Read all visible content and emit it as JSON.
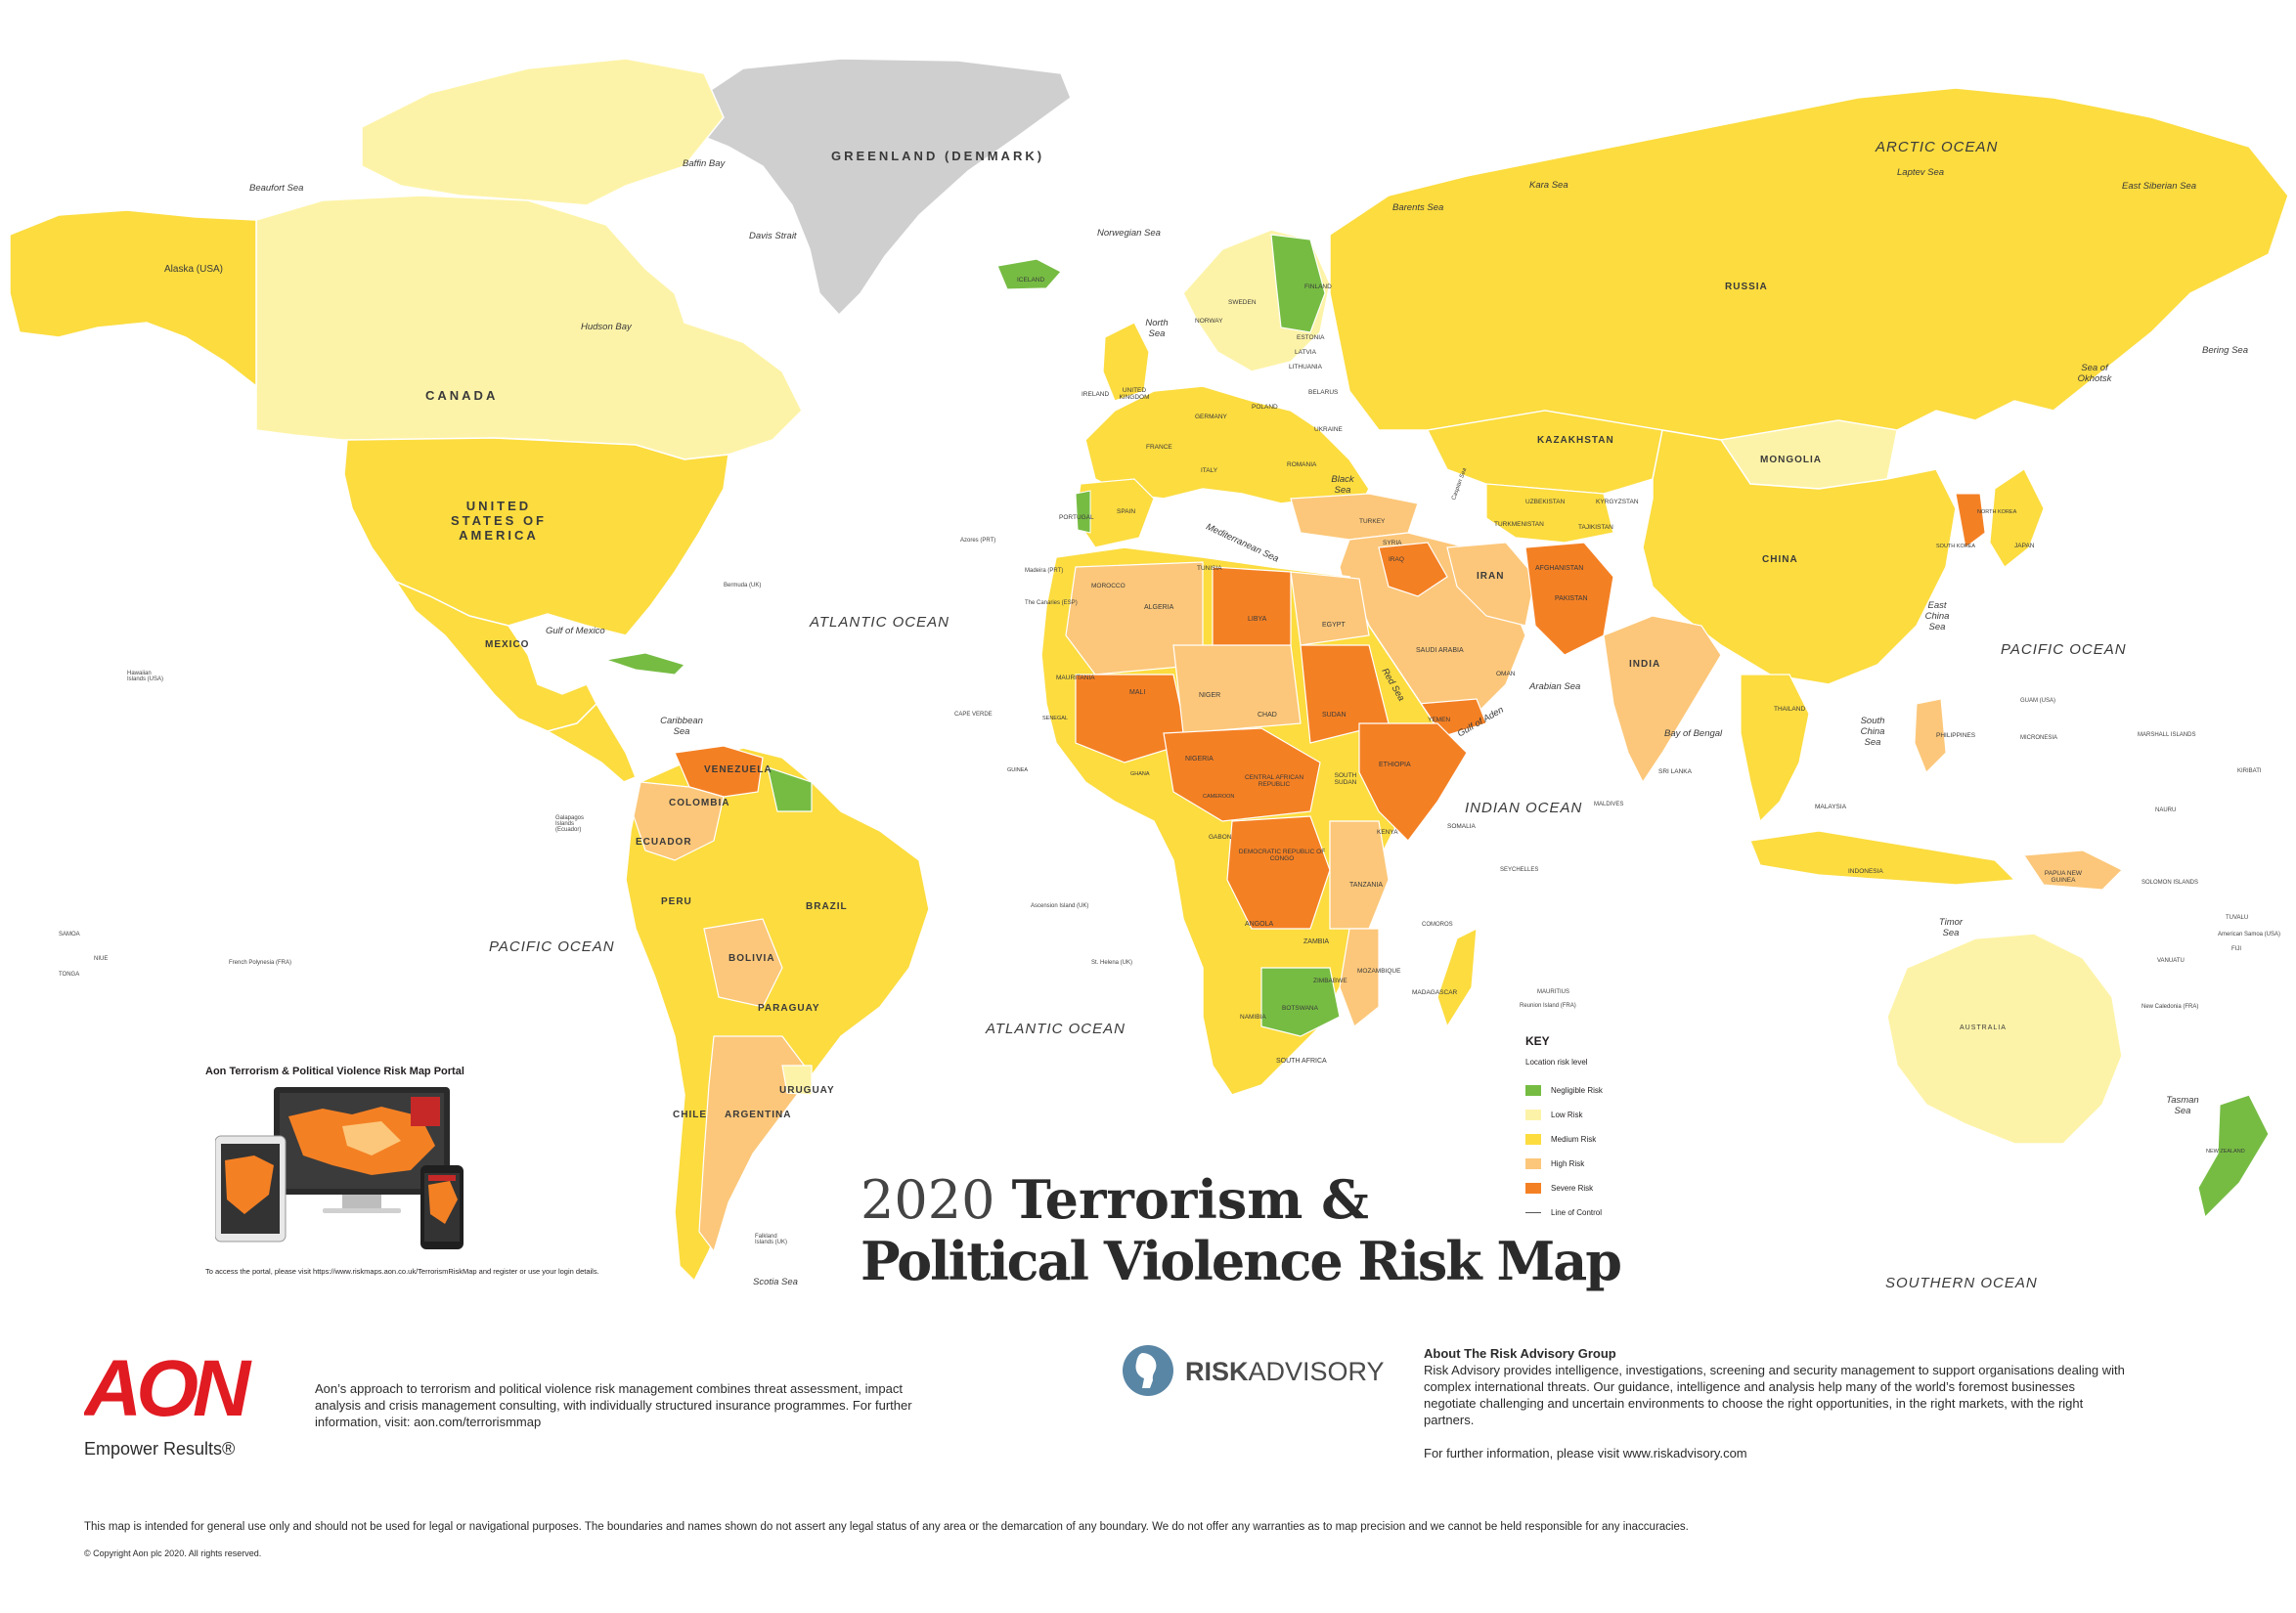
{
  "title": {
    "year": "2020",
    "line1_rest": "Terrorism &",
    "line2": "Political Violence Risk Map"
  },
  "legend": {
    "title": "KEY",
    "subtitle": "Location risk level",
    "items": [
      {
        "label": "Negligible Risk",
        "color": "#76bc43"
      },
      {
        "label": "Low Risk",
        "color": "#fdf3a8"
      },
      {
        "label": "Medium Risk",
        "color": "#fcdc3f"
      },
      {
        "label": "High Risk",
        "color": "#fcc77a"
      },
      {
        "label": "Severe Risk",
        "color": "#f48024"
      }
    ],
    "line_label": "Line of Control"
  },
  "colors": {
    "negligible": "#76bc43",
    "low": "#fdf3a8",
    "medium": "#fcdc3f",
    "medium_dark": "#f5d22c",
    "high": "#fcc77a",
    "severe": "#f48024",
    "greenland": "#cfcfd0",
    "aon_red": "#e11b22",
    "risk_advisory_blue": "#5a86a5"
  },
  "map_labels": {
    "countries": [
      "CANADA",
      "UNITED STATES OF AMERICA",
      "MEXICO",
      "BRAZIL",
      "PERU",
      "COLOMBIA",
      "VENEZUELA",
      "BOLIVIA",
      "ARGENTINA",
      "CHILE",
      "PARAGUAY",
      "URUGUAY",
      "ECUADOR",
      "RUSSIA",
      "CHINA",
      "MONGOLIA",
      "KAZAKHSTAN",
      "INDIA",
      "IRAN",
      "AFGHANISTAN",
      "PAKISTAN",
      "SAUDI ARABIA",
      "LIBYA",
      "ALGERIA",
      "EGYPT",
      "SUDAN",
      "MALI",
      "NIGER",
      "CHAD",
      "NIGERIA",
      "ETHIOPIA",
      "SOMALIA",
      "KENYA",
      "TANZANIA",
      "ANGOLA",
      "ZAMBIA",
      "NAMIBIA",
      "BOTSWANA",
      "SOUTH AFRICA",
      "MADAGASCAR",
      "MOZAMBIQUE",
      "ZIMBABWE",
      "AUSTRALIA",
      "INDONESIA",
      "TURKEY",
      "UKRAINE",
      "POLAND",
      "FRANCE",
      "SPAIN",
      "GERMANY",
      "SWEDEN",
      "FINLAND",
      "NORWAY",
      "ICELAND",
      "MAURITANIA",
      "MOROCCO",
      "YEMEN",
      "OMAN",
      "THAILAND",
      "MALAYSIA",
      "PHILIPPINES",
      "JAPAN",
      "PAPUA NEW GUINEA",
      "SOUTH SUDAN",
      "CENTRAL AFRICAN REPUBLIC",
      "DEMOCRATIC REPUBLIC OF CONGO",
      "GREENLAND (Denmark)",
      "Alaska (USA)",
      "UZBEKISTAN",
      "TURKMENISTAN",
      "KYRGYZSTAN",
      "TAJIKISTAN",
      "IRAQ",
      "SYRIA",
      "PORTUGAL",
      "ITALY",
      "ROMANIA",
      "BELARUS",
      "ESTONIA",
      "LATVIA",
      "LITHUANIA",
      "UNITED KINGDOM",
      "IRELAND",
      "NORTH KOREA",
      "SOUTH KOREA",
      "SRI LANKA",
      "TUNISIA",
      "GABON",
      "CAMEROON",
      "GHANA",
      "GUINEA",
      "SENEGAL",
      "NEW ZEALAND"
    ],
    "oceans": [
      "ATLANTIC OCEAN",
      "PACIFIC OCEAN",
      "INDIAN OCEAN",
      "ARCTIC OCEAN",
      "SOUTHERN OCEAN"
    ],
    "seas": [
      "Beaufort Sea",
      "Baffin Bay",
      "Davis Strait",
      "Hudson Bay",
      "Norwegian Sea",
      "North Sea",
      "Barents Sea",
      "Kara Sea",
      "Laptev Sea",
      "East Siberian Sea",
      "Bering Sea",
      "Sea of Okhotsk",
      "Gulf of Mexico",
      "Caribbean Sea",
      "Mediterranean Sea",
      "Black Sea",
      "Red Sea",
      "Gulf of Aden",
      "Arabian Sea",
      "Bay of Bengal",
      "South China Sea",
      "East China Sea",
      "Timor Sea",
      "Tasman Sea",
      "Scotia Sea",
      "Caspian Sea"
    ],
    "islands": [
      "Hawaiian Islands (USA)",
      "Bermuda (UK)",
      "Azores (PRT)",
      "Madeira (PRT)",
      "The Canaries (ESP)",
      "CAPE VERDE",
      "Ascension Island (UK)",
      "St. Helena (UK)",
      "Galapagos Islands (Ecuador)",
      "French Polynesia (FRA)",
      "SAMOA",
      "TONGA",
      "NIUE",
      "SEYCHELLES",
      "MALDIVES",
      "MAURITIUS",
      "COMOROS",
      "Reunion Island (FRA)",
      "GUAM (USA)",
      "MICRONESIA",
      "MARSHALL ISLANDS",
      "KIRIBATI",
      "NAURU",
      "SOLOMON ISLANDS",
      "TUVALU",
      "American Samoa (USA)",
      "FIJI",
      "VANUATU",
      "New Caledonia (FRA)",
      "Falkland Islands (UK)"
    ]
  },
  "portal": {
    "title": "Aon Terrorism & Political Violence Risk Map Portal",
    "note": "To access the portal, please visit https://www.riskmaps.aon.co.uk/TerrorismRiskMap and register or use your login details."
  },
  "aon": {
    "logo_text": "AON",
    "tagline": "Empower Results®",
    "text": "Aon’s approach to terrorism and political violence risk management combines threat assessment, impact analysis and crisis management consulting, with individually structured insurance programmes. For further information, visit: aon.com/terrorismmap"
  },
  "risk_advisory": {
    "logo_text": "RISKADVISORY",
    "logo_risk": "RISK",
    "logo_advisory": "ADVISORY",
    "title": "About The Risk Advisory Group",
    "text": "Risk Advisory provides intelligence, investigations, screening and security management to support organisations dealing with complex international threats. Our guidance, intelligence and analysis help many of the world’s foremost businesses negotiate challenging and uncertain environments to choose the right opportunities, in the right markets, with the right partners.",
    "link": "For further information, please visit www.riskadvisory.com"
  },
  "disclaimer": "This map is intended for general use only and should not be used for legal or navigational purposes. The boundaries and names shown do not assert any legal status of any area or the demarcation of any boundary. We do not offer any warranties as to map precision and we cannot be held responsible for any inaccuracies.",
  "copyright": "© Copyright Aon plc 2020. All rights reserved."
}
